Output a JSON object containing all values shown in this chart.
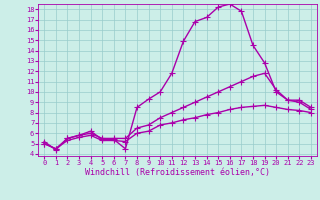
{
  "xlabel": "Windchill (Refroidissement éolien,°C)",
  "xlim": [
    -0.5,
    23.5
  ],
  "ylim": [
    3.8,
    18.5
  ],
  "xticks": [
    0,
    1,
    2,
    3,
    4,
    5,
    6,
    7,
    8,
    9,
    10,
    11,
    12,
    13,
    14,
    15,
    16,
    17,
    18,
    19,
    20,
    21,
    22,
    23
  ],
  "yticks": [
    4,
    5,
    6,
    7,
    8,
    9,
    10,
    11,
    12,
    13,
    14,
    15,
    16,
    17,
    18
  ],
  "bg_color": "#cceee8",
  "line_color": "#aa00aa",
  "grid_color": "#99cccc",
  "line1_x": [
    0,
    1,
    2,
    3,
    4,
    5,
    6,
    7,
    8,
    9,
    10,
    11,
    12,
    13,
    14,
    15,
    16,
    17,
    18,
    19,
    20,
    21,
    22,
    23
  ],
  "line1_y": [
    5.2,
    4.4,
    5.5,
    5.8,
    6.2,
    5.4,
    5.4,
    4.5,
    8.5,
    9.3,
    10.0,
    11.8,
    14.9,
    16.8,
    17.2,
    18.2,
    18.5,
    17.8,
    14.5,
    12.8,
    10.0,
    9.2,
    9.2,
    8.5
  ],
  "line2_x": [
    0,
    1,
    2,
    3,
    4,
    5,
    6,
    7,
    8,
    9,
    10,
    11,
    12,
    13,
    14,
    15,
    16,
    17,
    18,
    19,
    20,
    21,
    22,
    23
  ],
  "line2_y": [
    5.0,
    4.5,
    5.5,
    5.8,
    6.0,
    5.5,
    5.5,
    5.5,
    6.5,
    6.8,
    7.5,
    8.0,
    8.5,
    9.0,
    9.5,
    10.0,
    10.5,
    11.0,
    11.5,
    11.8,
    10.2,
    9.2,
    9.0,
    8.3
  ],
  "line3_x": [
    0,
    1,
    2,
    3,
    4,
    5,
    6,
    7,
    8,
    9,
    10,
    11,
    12,
    13,
    14,
    15,
    16,
    17,
    18,
    19,
    20,
    21,
    22,
    23
  ],
  "line3_y": [
    5.0,
    4.5,
    5.3,
    5.6,
    5.8,
    5.3,
    5.3,
    5.2,
    6.0,
    6.2,
    6.8,
    7.0,
    7.3,
    7.5,
    7.8,
    8.0,
    8.3,
    8.5,
    8.6,
    8.7,
    8.5,
    8.3,
    8.2,
    8.0
  ],
  "marker": "+",
  "markersize": 4,
  "linewidth": 1.0,
  "tick_fontsize": 5.0,
  "label_fontsize": 6.0
}
